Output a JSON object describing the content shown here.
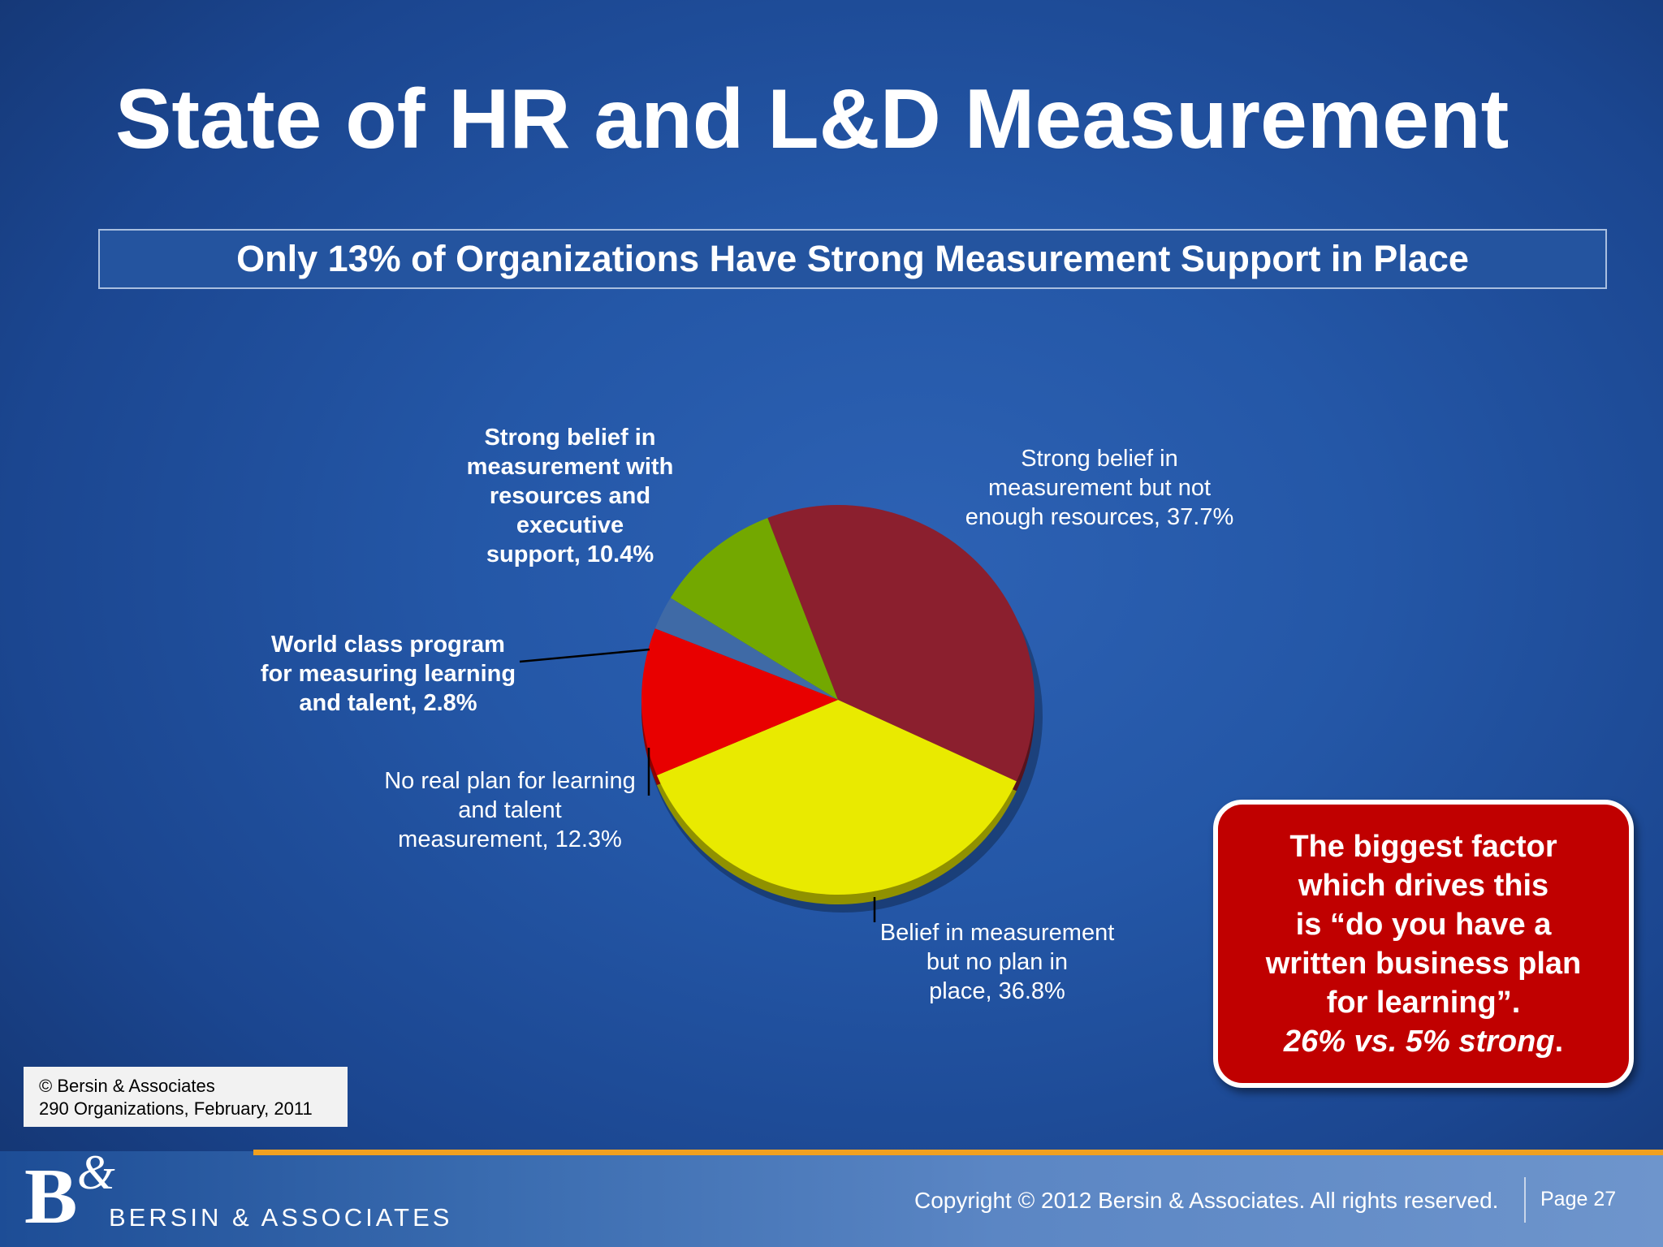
{
  "title": "State of HR and L&D Measurement",
  "subtitle": "Only 13% of Organizations Have Strong Measurement Support in Place",
  "chart_data": {
    "type": "pie",
    "title": "",
    "slices": [
      {
        "label_lines": [
          "Strong belief in",
          "measurement but not",
          "enough resources, 37.7%"
        ],
        "label": "Strong belief in measurement but not enough resources",
        "value": 37.7,
        "color": "#8b1f2e",
        "bold": false
      },
      {
        "label_lines": [
          "Belief in measurement",
          "but no plan in",
          "place, 36.8%"
        ],
        "label": "Belief in measurement but no plan in place",
        "value": 36.8,
        "color": "#e9ea00",
        "bold": false
      },
      {
        "label_lines": [
          "No real plan for learning",
          "and talent",
          "measurement, 12.3%"
        ],
        "label": "No real plan for learning and talent measurement",
        "value": 12.3,
        "color": "#e80000",
        "bold": false
      },
      {
        "label_lines": [
          "World class program",
          "for measuring learning",
          "and talent, 2.8%"
        ],
        "label": "World class program for measuring learning and talent",
        "value": 2.8,
        "color": "#3f6aa6",
        "bold": true
      },
      {
        "label_lines": [
          "Strong belief in",
          "measurement with",
          "resources and",
          "executive",
          "support, 10.4%"
        ],
        "label": "Strong belief in measurement with resources and executive support",
        "value": 10.4,
        "color": "#73a800",
        "bold": true
      }
    ]
  },
  "callout": {
    "lines": [
      "The biggest factor",
      "which drives this",
      "is “do you have a",
      "written business plan",
      "for learning”."
    ],
    "emphasis": "26% vs. 5% strong",
    "emphasis_suffix": "."
  },
  "source": {
    "line1": "© Bersin & Associates",
    "line2": "290 Organizations, February, 2011"
  },
  "footer": {
    "logo_letter": "B",
    "logo_amp": "&",
    "logo_text": "BERSIN & ASSOCIATES",
    "copyright": "Copyright © 2012 Bersin & Associates. All rights reserved.",
    "page": "Page 27"
  }
}
